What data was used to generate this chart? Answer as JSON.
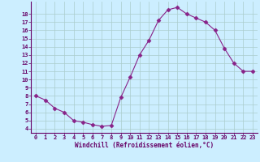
{
  "x": [
    0,
    1,
    2,
    3,
    4,
    5,
    6,
    7,
    8,
    9,
    10,
    11,
    12,
    13,
    14,
    15,
    16,
    17,
    18,
    19,
    20,
    21,
    22,
    23
  ],
  "y": [
    8,
    7.5,
    6.5,
    6,
    5,
    4.8,
    4.5,
    4.3,
    4.4,
    7.8,
    10.3,
    13,
    14.8,
    17.2,
    18.5,
    18.8,
    18,
    17.5,
    17,
    16,
    13.8,
    12,
    11,
    11
  ],
  "line_color": "#882288",
  "marker": "D",
  "marker_size": 2.5,
  "bg_color": "#cceeff",
  "grid_color": "#aacccc",
  "axis_color": "#660066",
  "xlabel": "Windchill (Refroidissement éolien,°C)",
  "ylim": [
    3.5,
    19.5
  ],
  "xlim": [
    -0.5,
    23.5
  ],
  "yticks": [
    4,
    5,
    6,
    7,
    8,
    9,
    10,
    11,
    12,
    13,
    14,
    15,
    16,
    17,
    18
  ],
  "xticks": [
    0,
    1,
    2,
    3,
    4,
    5,
    6,
    7,
    8,
    9,
    10,
    11,
    12,
    13,
    14,
    15,
    16,
    17,
    18,
    19,
    20,
    21,
    22,
    23
  ],
  "tick_fontsize": 5.0,
  "xlabel_fontsize": 5.5
}
